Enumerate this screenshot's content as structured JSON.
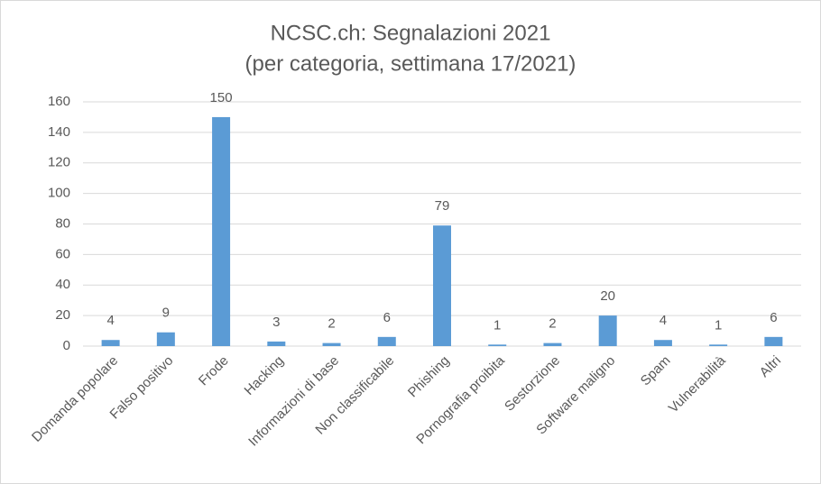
{
  "chart_data": {
    "type": "bar",
    "title": "NCSC.ch: Segnalazioni 2021",
    "subtitle": "(per categoria, settimana 17/2021)",
    "categories": [
      "Domanda popolare",
      "Falso positivo",
      "Frode",
      "Hacking",
      "Informazioni di base",
      "Non classificabile",
      "Phishing",
      "Pornografia proibita",
      "Sestorzione",
      "Software maligno",
      "Spam",
      "Vulnerabilità",
      "Altri"
    ],
    "values": [
      4,
      9,
      150,
      3,
      2,
      6,
      79,
      1,
      2,
      20,
      4,
      1,
      6
    ],
    "color": "#5b9bd5",
    "ylim": [
      0,
      160
    ],
    "yticks": [
      0,
      20,
      40,
      60,
      80,
      100,
      120,
      140,
      160
    ],
    "grid": true
  }
}
